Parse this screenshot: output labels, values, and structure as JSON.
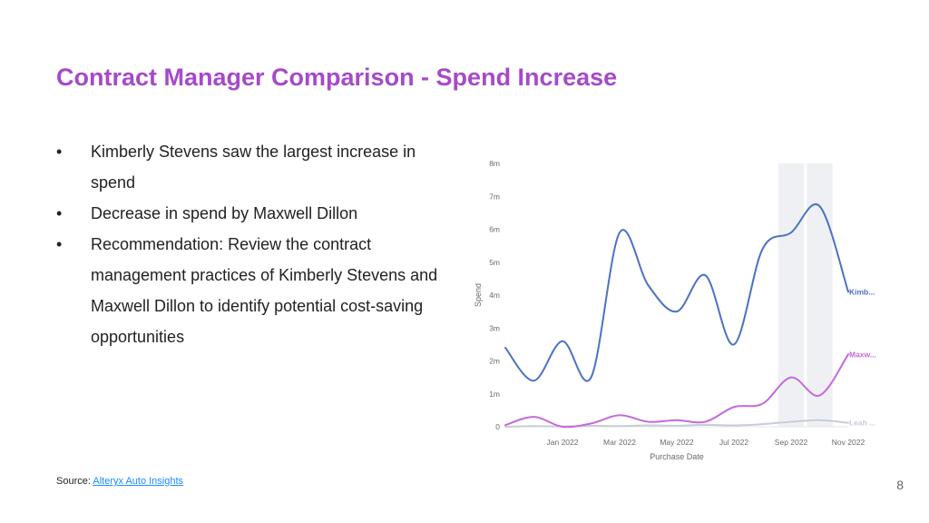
{
  "slide": {
    "title": "Contract Manager Comparison - Spend Increase",
    "bullets": [
      "Kimberly Stevens saw the largest increase in spend",
      "Decrease in spend by Maxwell Dillon",
      "Recommendation: Review the contract management practices of Kimberly Stevens and Maxwell Dillon to identify potential cost-saving opportunities"
    ],
    "bullet_symbol": "•",
    "source_label": "Source:",
    "source_link": "Alteryx Auto Insights",
    "page_number": "8"
  },
  "chart_data": {
    "type": "line",
    "x_tick_labels": [
      "Jan 2022",
      "Mar 2022",
      "May 2022",
      "Jul 2022",
      "Sep 2022",
      "Nov 2022"
    ],
    "y_tick_labels": [
      "0",
      "1m",
      "2m",
      "3m",
      "4m",
      "5m",
      "6m",
      "7m",
      "8m"
    ],
    "xlabel": "Purchase Date",
    "ylabel": "Spend",
    "ylim": [
      0,
      8000000
    ],
    "x": [
      "2021-11",
      "2021-12",
      "2022-01",
      "2022-02",
      "2022-03",
      "2022-04",
      "2022-05",
      "2022-06",
      "2022-07",
      "2022-08",
      "2022-09",
      "2022-10",
      "2022-11"
    ],
    "highlight_periods": [
      "2022-09",
      "2022-10"
    ],
    "series": [
      {
        "name": "Kimb...",
        "color": "#4a72c4",
        "values": [
          2400000,
          1400000,
          2600000,
          1500000,
          5900000,
          4300000,
          3500000,
          4600000,
          2500000,
          5400000,
          5900000,
          6700000,
          4100000
        ]
      },
      {
        "name": "Maxw...",
        "color": "#c46ad9",
        "values": [
          50000,
          300000,
          0,
          100000,
          350000,
          150000,
          200000,
          150000,
          600000,
          700000,
          1500000,
          950000,
          2200000
        ]
      },
      {
        "name": "Leah ...",
        "color": "#c8cdd6",
        "values": [
          0,
          20000,
          10000,
          30000,
          20000,
          40000,
          30000,
          60000,
          40000,
          80000,
          150000,
          200000,
          120000
        ]
      }
    ]
  }
}
